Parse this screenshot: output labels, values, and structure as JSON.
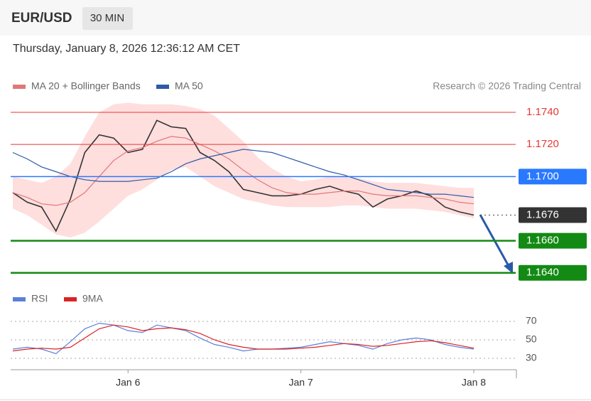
{
  "header": {
    "symbol": "EUR/USD",
    "interval": "30 MIN",
    "timestamp": "Thursday, January 8, 2026 12:36:12 AM CET",
    "credit": "Research © 2026 Trading Central"
  },
  "chart_data": [
    {
      "type": "line",
      "categories": [
        null,
        null,
        null,
        null,
        null,
        null,
        null,
        null,
        "Jan 6",
        null,
        null,
        null,
        null,
        null,
        null,
        null,
        null,
        null,
        null,
        null,
        "Jan 7",
        null,
        null,
        null,
        null,
        null,
        null,
        null,
        null,
        null,
        null,
        null,
        "Jan 8"
      ],
      "series": [
        {
          "name": "EUR/USD",
          "color": "#333333",
          "values": [
            1.169,
            1.1684,
            1.1681,
            1.1666,
            1.1686,
            1.1715,
            1.1726,
            1.1724,
            1.1715,
            1.1717,
            1.1735,
            1.1731,
            1.173,
            1.1715,
            1.171,
            1.1703,
            1.1692,
            1.169,
            1.1688,
            1.1688,
            1.1689,
            1.1692,
            1.1694,
            1.1691,
            1.1689,
            1.1681,
            1.1686,
            1.1688,
            1.1691,
            1.1688,
            1.1681,
            1.1678,
            1.1676
          ]
        },
        {
          "name": "MA 20 + Bollinger Bands",
          "color": "#e07878",
          "band_color": "#ffd0d0",
          "values": [
            1.169,
            1.1687,
            1.1683,
            1.1682,
            1.1684,
            1.169,
            1.17,
            1.171,
            1.1716,
            1.1718,
            1.1722,
            1.1725,
            1.1724,
            1.172,
            1.1716,
            1.1711,
            1.1704,
            1.1698,
            1.1693,
            1.169,
            1.1689,
            1.1689,
            1.169,
            1.1691,
            1.1691,
            1.1689,
            1.1688,
            1.1688,
            1.1688,
            1.1687,
            1.1686,
            1.1684,
            1.1683
          ],
          "upper": [
            1.17,
            1.1698,
            1.1696,
            1.17,
            1.1708,
            1.1725,
            1.174,
            1.1745,
            1.1746,
            1.1745,
            1.1745,
            1.1745,
            1.1744,
            1.1742,
            1.1738,
            1.173,
            1.1722,
            1.1712,
            1.1705,
            1.17,
            1.1697,
            1.1698,
            1.17,
            1.17,
            1.1699,
            1.1697,
            1.1696,
            1.1696,
            1.1696,
            1.1695,
            1.1694,
            1.1693,
            1.1693
          ],
          "lower": [
            1.168,
            1.1676,
            1.167,
            1.1664,
            1.1662,
            1.1665,
            1.1672,
            1.168,
            1.1688,
            1.1692,
            1.1698,
            1.1704,
            1.1706,
            1.17,
            1.1694,
            1.169,
            1.1686,
            1.1684,
            1.1682,
            1.1681,
            1.1681,
            1.1681,
            1.1681,
            1.1682,
            1.1682,
            1.1681,
            1.168,
            1.168,
            1.168,
            1.1679,
            1.1678,
            1.1676,
            1.1674
          ]
        },
        {
          "name": "MA 50",
          "color": "#2f5aa8",
          "values": [
            1.1715,
            1.1711,
            1.1706,
            1.1703,
            1.17,
            1.1698,
            1.1697,
            1.1697,
            1.1697,
            1.1698,
            1.1699,
            1.1703,
            1.1708,
            1.1711,
            1.1713,
            1.1715,
            1.1717,
            1.1716,
            1.1715,
            1.1712,
            1.1709,
            1.1706,
            1.1703,
            1.1701,
            1.1698,
            1.1695,
            1.1692,
            1.1691,
            1.169,
            1.1689,
            1.1689,
            1.1688,
            1.1687
          ]
        }
      ],
      "ylim": [
        1.1635,
        1.1748
      ],
      "levels": [
        {
          "value": 1.174,
          "label": "1.1740",
          "color": "#e53935",
          "tag": false,
          "width": 1
        },
        {
          "value": 1.172,
          "label": "1.1720",
          "color": "#e53935",
          "tag": false,
          "width": 1
        },
        {
          "value": 1.17,
          "label": "1.1700",
          "color": "#2979ff",
          "tag": true,
          "width": 1.5
        },
        {
          "value": 1.1676,
          "label": "1.1676",
          "color": "#333333",
          "tag": true,
          "width": 1,
          "dotted": true
        },
        {
          "value": 1.166,
          "label": "1.1660",
          "color": "#138a13",
          "tag": true,
          "width": 2.5
        },
        {
          "value": 1.164,
          "label": "1.1640",
          "color": "#138a13",
          "tag": true,
          "width": 2.5
        }
      ]
    },
    {
      "type": "line",
      "series": [
        {
          "name": "RSI",
          "color": "#5b7fdc",
          "values": [
            40,
            42,
            40,
            35,
            48,
            62,
            68,
            66,
            60,
            58,
            66,
            63,
            60,
            52,
            45,
            42,
            38,
            40,
            40,
            41,
            42,
            45,
            48,
            46,
            44,
            40,
            46,
            50,
            52,
            50,
            45,
            42,
            40
          ]
        },
        {
          "name": "9MA",
          "color": "#dd2222",
          "values": [
            38,
            40,
            41,
            40,
            42,
            52,
            62,
            66,
            64,
            60,
            62,
            63,
            61,
            57,
            50,
            45,
            42,
            40,
            40,
            40,
            41,
            42,
            44,
            46,
            45,
            43,
            44,
            46,
            48,
            49,
            47,
            44,
            41
          ]
        }
      ],
      "ylim": [
        22,
        78
      ],
      "yticks": [
        30,
        50,
        70
      ]
    }
  ]
}
